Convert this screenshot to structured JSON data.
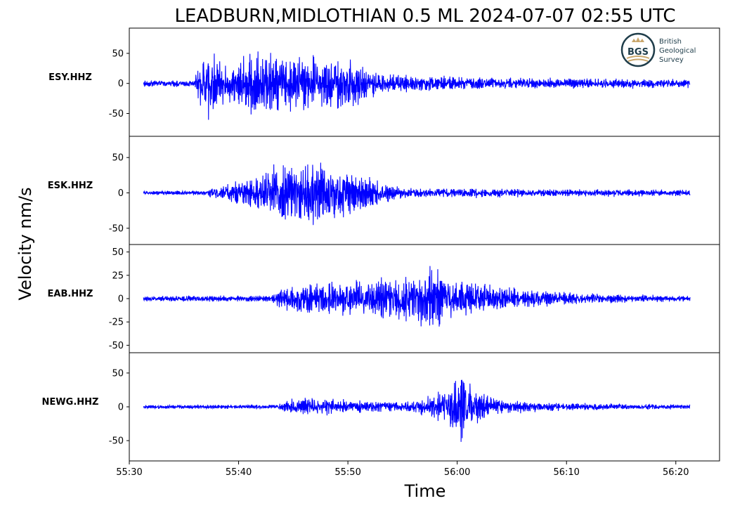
{
  "chart_data": {
    "type": "line",
    "title": "LEADBURN,MIDLOTHIAN 0.5 ML   2024-07-07 02:55 UTC",
    "ylabel": "Velocity nm/s",
    "xlabel": "Time",
    "x_ticks": [
      "55:30",
      "55:40",
      "55:50",
      "56:00",
      "56:10",
      "56:20"
    ],
    "x_range_seconds": [
      30,
      84
    ],
    "trace_time_range_seconds": [
      31.3,
      81.3
    ],
    "grid": false,
    "line_color": "#0000ff",
    "panels": [
      {
        "station": "ESY.HHZ",
        "ylim": [
          -88,
          92
        ],
        "yticks": [
          50,
          0,
          -50
        ],
        "peak_positive": 86,
        "peak_negative": -78,
        "envelope": [
          [
            31.3,
            8
          ],
          [
            36.0,
            8
          ],
          [
            36.3,
            55
          ],
          [
            37.2,
            80
          ],
          [
            39.0,
            45
          ],
          [
            41.5,
            86
          ],
          [
            43.0,
            70
          ],
          [
            46.0,
            72
          ],
          [
            48.0,
            60
          ],
          [
            50.5,
            62
          ],
          [
            52.0,
            30
          ],
          [
            55.0,
            22
          ],
          [
            60.0,
            15
          ],
          [
            81.3,
            10
          ]
        ]
      },
      {
        "station": "ESK.HHZ",
        "ylim": [
          -73,
          80
        ],
        "yticks": [
          50,
          0,
          -50
        ],
        "peak_positive": 68,
        "peak_negative": -62,
        "envelope": [
          [
            31.3,
            4
          ],
          [
            37.0,
            5
          ],
          [
            38.5,
            15
          ],
          [
            41.0,
            30
          ],
          [
            44.0,
            62
          ],
          [
            46.5,
            68
          ],
          [
            49.0,
            50
          ],
          [
            51.0,
            45
          ],
          [
            53.5,
            18
          ],
          [
            56.0,
            10
          ],
          [
            81.3,
            6
          ]
        ]
      },
      {
        "station": "EAB.HHZ",
        "ylim": [
          -58,
          58
        ],
        "yticks": [
          50,
          25,
          0,
          -25,
          -50
        ],
        "peak_positive": 52,
        "peak_negative": -54,
        "envelope": [
          [
            31.3,
            4
          ],
          [
            43.0,
            5
          ],
          [
            43.8,
            20
          ],
          [
            46.0,
            22
          ],
          [
            49.0,
            28
          ],
          [
            53.0,
            30
          ],
          [
            56.0,
            40
          ],
          [
            57.8,
            54
          ],
          [
            59.0,
            35
          ],
          [
            62.0,
            25
          ],
          [
            66.0,
            15
          ],
          [
            72.0,
            8
          ],
          [
            81.3,
            4
          ]
        ]
      },
      {
        "station": "NEWG.HHZ",
        "ylim": [
          -80,
          80
        ],
        "yticks": [
          50,
          0,
          -50
        ],
        "peak_positive": 72,
        "peak_negative": -74,
        "envelope": [
          [
            31.3,
            4
          ],
          [
            43.5,
            5
          ],
          [
            44.5,
            15
          ],
          [
            47.0,
            20
          ],
          [
            50.0,
            15
          ],
          [
            55.0,
            10
          ],
          [
            58.5,
            30
          ],
          [
            60.0,
            60
          ],
          [
            60.6,
            74
          ],
          [
            62.0,
            35
          ],
          [
            64.0,
            15
          ],
          [
            70.0,
            8
          ],
          [
            81.3,
            5
          ]
        ]
      }
    ]
  },
  "logo": {
    "monogram": "BGS",
    "line1": "British",
    "line2": "Geological",
    "line3": "Survey"
  }
}
